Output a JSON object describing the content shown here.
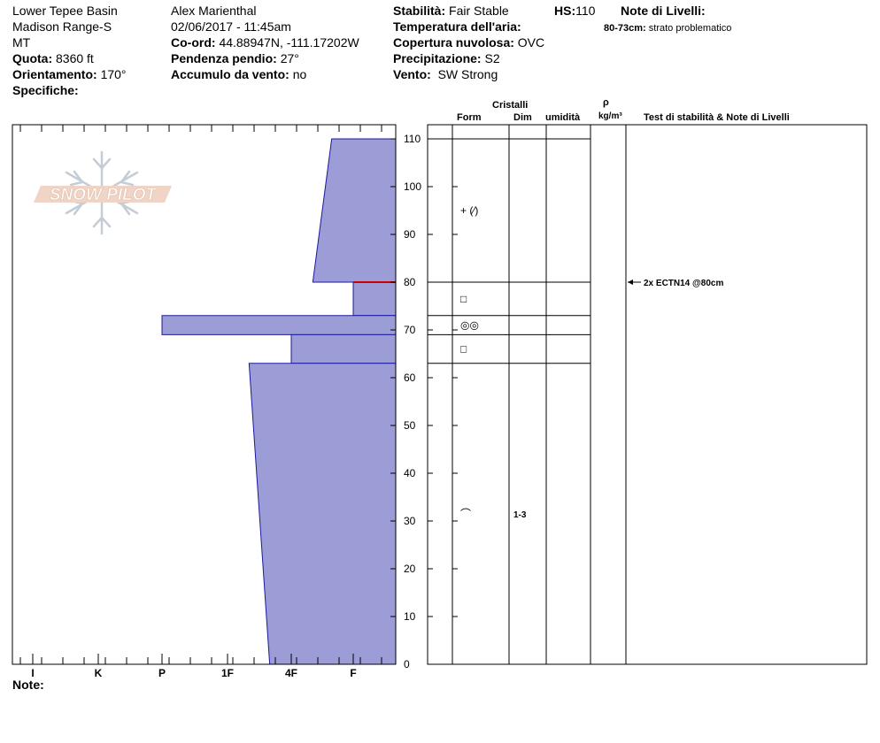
{
  "header": {
    "col1": {
      "location": "Lower Tepee Basin",
      "range": "Madison Range-S",
      "state": "MT",
      "elevation_label": "Quota:",
      "elevation_value": "8360 ft",
      "aspect_label": "Orientamento:",
      "aspect_value": "170°",
      "specifics_label": "Specifiche:"
    },
    "col2": {
      "observer": "Alex Marienthal",
      "datetime": "02/06/2017 - 11:45am",
      "coord_label": "Co-ord:",
      "coord_value": "44.88947N, -111.17202W",
      "slope_label": "Pendenza pendio:",
      "slope_value": "27°",
      "wind_loading_label": "Accumulo da vento:",
      "wind_loading_value": "no"
    },
    "col3": {
      "stability_label": "Stabilità:",
      "stability_value": "Fair Stable",
      "hs_label": "HS:",
      "hs_value": "110",
      "air_temp_label": "Temperatura dell'aria:",
      "sky_label": "Copertura nuvolosa:",
      "sky_value": "OVC",
      "precip_label": "Precipitazione:",
      "precip_value": "S2",
      "wind_label": "Vento:",
      "wind_value": "SW Strong"
    },
    "layer_notes": {
      "title": "Note di Livelli:",
      "entry_range": "80-73cm:",
      "entry_text": "strato problematico"
    }
  },
  "columns": {
    "crystals": "Cristalli",
    "form": "Form",
    "size": "Dim",
    "moisture": "umidità",
    "rho": "ρ",
    "density_unit": "kg/m³",
    "tests": "Test di stabilità & Note di Livelli"
  },
  "logo_text": "SNOW PILOT",
  "note_label": "Note:",
  "chart_data": {
    "type": "bar",
    "orientation": "horizontal",
    "y_axis": {
      "range": [
        0,
        110
      ],
      "ticks": [
        0,
        10,
        20,
        30,
        40,
        50,
        60,
        70,
        80,
        90,
        100,
        110
      ]
    },
    "x_axis": {
      "categories": [
        "I",
        "K",
        "P",
        "1F",
        "4F",
        "F"
      ],
      "reversed": true
    },
    "hardness_profile": [
      {
        "top": 110,
        "bottom": 80,
        "hardness_top": "F+",
        "hardness_bottom": "4F-"
      },
      {
        "top": 80,
        "bottom": 73,
        "hardness": "F"
      },
      {
        "top": 73,
        "bottom": 69,
        "hardness": "P"
      },
      {
        "top": 69,
        "bottom": 63,
        "hardness": "4F"
      },
      {
        "top": 63,
        "bottom": 0,
        "hardness_top": "1F-",
        "hardness_bottom": "4F+"
      }
    ],
    "layer_boundaries": [
      110,
      80,
      73,
      69,
      63
    ],
    "crystals": [
      {
        "depth": 95,
        "form": "+ (⁄)",
        "size": ""
      },
      {
        "depth": 76.5,
        "form": "□",
        "size": ""
      },
      {
        "depth": 71,
        "form": "◎◎",
        "size": ""
      },
      {
        "depth": 66,
        "form": "□",
        "size": ""
      },
      {
        "depth": 31.5,
        "form": "⌒",
        "size": "1-3"
      }
    ],
    "stability_tests": [
      {
        "depth": 80,
        "label": "2x ECTN14 @80cm"
      }
    ],
    "colors": {
      "fill": "#9c9cd7",
      "outline": "#1a1a9a",
      "test_layer": "#cc0000"
    }
  }
}
